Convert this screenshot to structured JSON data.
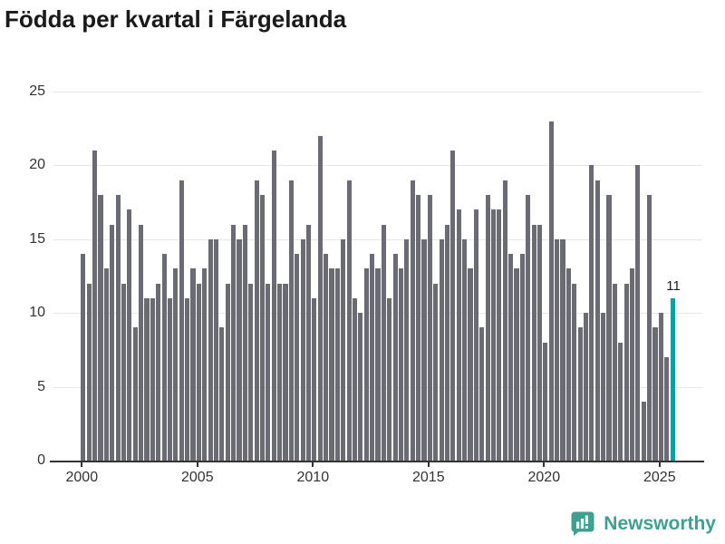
{
  "title": "Födda per kvartal i Färgelanda",
  "chart_data": {
    "type": "bar",
    "title": "Födda per kvartal i Färgelanda",
    "frequency": "quarterly",
    "x_start": "2000 Q1",
    "x_end": "2025 Q3",
    "values": [
      14,
      12,
      21,
      18,
      13,
      16,
      18,
      12,
      17,
      9,
      16,
      11,
      11,
      12,
      14,
      11,
      13,
      19,
      11,
      13,
      12,
      13,
      15,
      15,
      9,
      12,
      16,
      15,
      16,
      12,
      19,
      18,
      12,
      21,
      12,
      12,
      19,
      14,
      15,
      16,
      11,
      22,
      14,
      13,
      13,
      15,
      19,
      11,
      10,
      13,
      14,
      13,
      16,
      11,
      14,
      13,
      15,
      19,
      18,
      15,
      18,
      12,
      15,
      16,
      21,
      17,
      15,
      13,
      17,
      9,
      18,
      17,
      17,
      19,
      14,
      13,
      14,
      18,
      16,
      16,
      8,
      23,
      15,
      15,
      13,
      12,
      9,
      10,
      20,
      19,
      10,
      18,
      12,
      8,
      12,
      13,
      20,
      4,
      18,
      9,
      10,
      7,
      11
    ],
    "highlight_last_bar": true,
    "last_bar_label": "11",
    "x_tick_labels": [
      "2000",
      "2005",
      "2010",
      "2015",
      "2020",
      "2025"
    ],
    "x_tick_interval_bars": 20,
    "y_tick_labels": [
      "0",
      "5",
      "10",
      "15",
      "20",
      "25"
    ],
    "y_ticks": [
      0,
      5,
      10,
      15,
      20,
      25
    ],
    "ylim": [
      0,
      25
    ],
    "grid": true,
    "legend": "none",
    "bar_color": "#6b6b73",
    "highlight_color": "#00a3a3",
    "axis_color": "#333333",
    "grid_color": "#e7e7e7"
  },
  "footer": {
    "brand": "Newsworthy",
    "brand_color": "#3fa091"
  }
}
